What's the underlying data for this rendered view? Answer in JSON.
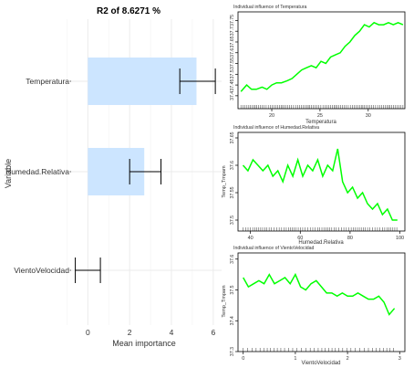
{
  "chart_data": [
    {
      "type": "bar",
      "title": "R2 of 8.6271 %",
      "xlabel": "Mean importance",
      "ylabel": "Variable",
      "orientation": "horizontal",
      "categories": [
        "Temperatura",
        "Humedad.Relativa",
        "VientoVelocidad"
      ],
      "values": [
        5.2,
        2.7,
        null
      ],
      "error_low": [
        4.4,
        2.0,
        -0.6
      ],
      "error_high": [
        6.1,
        3.5,
        0.6
      ],
      "xlim": [
        -0.8,
        6.4
      ],
      "xticks": [
        0,
        2,
        4,
        6
      ],
      "bar_color": "#cce5ff",
      "grid": true
    },
    {
      "type": "line",
      "title": "Individual influence of Temperatura",
      "xlabel": "Temperatura",
      "ylabel": "",
      "xlim": [
        16.5,
        33.8
      ],
      "ylim": [
        37.34,
        37.79
      ],
      "xticks": [
        20,
        25,
        30
      ],
      "yticks": [
        37.4,
        37.45,
        37.5,
        37.55,
        37.6,
        37.65,
        37.7,
        37.75
      ],
      "ytick_labels": [
        "37.4",
        "37.45",
        "37.5",
        "37.55",
        "37.6",
        "37.65",
        "37.7",
        "37.75"
      ],
      "line_color": "#00ff00",
      "x": [
        16.8,
        17.4,
        17.9,
        18.4,
        19.0,
        19.5,
        20.0,
        20.5,
        21.0,
        21.6,
        22.1,
        22.6,
        23.1,
        23.6,
        24.1,
        24.6,
        25.1,
        25.6,
        26.1,
        26.6,
        27.1,
        27.6,
        28.1,
        28.6,
        29.1,
        29.6,
        30.1,
        30.6,
        31.1,
        31.6,
        32.1,
        32.6,
        33.1,
        33.6
      ],
      "y": [
        37.42,
        37.45,
        37.43,
        37.43,
        37.44,
        37.43,
        37.45,
        37.46,
        37.46,
        37.47,
        37.48,
        37.5,
        37.52,
        37.53,
        37.54,
        37.53,
        37.56,
        37.55,
        37.58,
        37.59,
        37.6,
        37.63,
        37.65,
        37.68,
        37.7,
        37.73,
        37.72,
        37.74,
        37.73,
        37.73,
        37.74,
        37.73,
        37.74,
        37.73
      ],
      "rug": true
    },
    {
      "type": "line",
      "title": "Individual influence of Humedad.Relativa",
      "xlabel": "Humedad.Relativa",
      "ylabel": "Temp_Tmpam",
      "xlim": [
        35,
        102
      ],
      "ylim": [
        37.48,
        37.66
      ],
      "xticks": [
        40,
        60,
        80,
        100
      ],
      "yticks": [
        37.5,
        37.55,
        37.6,
        37.65
      ],
      "ytick_labels": [
        "37.5",
        "37.55",
        "37.6",
        "37.65"
      ],
      "line_color": "#00ff00",
      "x": [
        37,
        39,
        41,
        43,
        45,
        47,
        49,
        51,
        53,
        55,
        57,
        59,
        61,
        63,
        65,
        67,
        69,
        71,
        73,
        75,
        77,
        79,
        81,
        83,
        85,
        87,
        89,
        91,
        93,
        95,
        97,
        99
      ],
      "y": [
        37.6,
        37.59,
        37.61,
        37.6,
        37.59,
        37.6,
        37.58,
        37.59,
        37.57,
        37.6,
        37.58,
        37.61,
        37.58,
        37.6,
        37.59,
        37.61,
        37.58,
        37.6,
        37.59,
        37.63,
        37.57,
        37.55,
        37.56,
        37.54,
        37.55,
        37.53,
        37.52,
        37.53,
        37.51,
        37.52,
        37.5,
        37.5
      ],
      "rug": true
    },
    {
      "type": "line",
      "title": "Individual influence of VientoVelocidad",
      "xlabel": "VientoVelocidad",
      "ylabel": "Temp_Tmpam",
      "xlim": [
        -0.1,
        3.1
      ],
      "ylim": [
        37.3,
        37.62
      ],
      "xticks": [
        0,
        1,
        2,
        3
      ],
      "yticks": [
        37.3,
        37.4,
        37.5,
        37.6
      ],
      "ytick_labels": [
        "37.3",
        "37.4",
        "37.5",
        "37.6"
      ],
      "line_color": "#00ff00",
      "x": [
        0.0,
        0.1,
        0.2,
        0.3,
        0.4,
        0.5,
        0.6,
        0.7,
        0.8,
        0.9,
        1.0,
        1.1,
        1.2,
        1.3,
        1.4,
        1.5,
        1.6,
        1.7,
        1.8,
        1.9,
        2.0,
        2.1,
        2.2,
        2.3,
        2.4,
        2.5,
        2.6,
        2.7,
        2.8,
        2.9
      ],
      "y": [
        37.54,
        37.51,
        37.52,
        37.53,
        37.52,
        37.55,
        37.52,
        37.53,
        37.54,
        37.52,
        37.55,
        37.51,
        37.5,
        37.52,
        37.53,
        37.51,
        37.49,
        37.49,
        37.48,
        37.49,
        37.48,
        37.48,
        37.49,
        37.48,
        37.47,
        37.47,
        37.48,
        37.46,
        37.42,
        37.44
      ],
      "rug": true
    }
  ]
}
